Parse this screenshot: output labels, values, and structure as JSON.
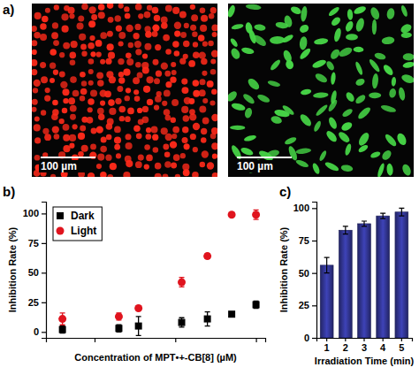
{
  "images": {
    "panel": "a)",
    "panels": [
      {
        "scale_bar": "100 µm",
        "color": "#ff2a1a"
      },
      {
        "scale_bar": "100 µm",
        "color": "#46d446"
      }
    ]
  },
  "chart_data": [
    {
      "panel": "b)",
      "type": "scatter",
      "x_label": "Concentration of MPT•+-CB[8] (µM)",
      "y_label": "Inhibition Rate (%)",
      "x": [
        0.4,
        2,
        3.5,
        12,
        25,
        50,
        100
      ],
      "series": [
        {
          "name": "Dark",
          "color": "#000000",
          "marker": "square",
          "values": [
            2,
            3,
            5,
            8,
            11,
            15,
            23
          ],
          "errors": [
            3,
            3,
            8,
            4,
            6,
            1,
            3
          ]
        },
        {
          "name": "Light",
          "color": "#e0141e",
          "marker": "circle",
          "values": [
            11,
            13,
            20,
            42,
            64,
            99,
            99
          ],
          "errors": [
            5,
            3,
            1,
            4,
            2,
            1,
            4
          ]
        }
      ],
      "xlim": [
        0.25,
        130
      ],
      "ylim": [
        -5,
        110
      ],
      "xticks": [
        1,
        10,
        100
      ],
      "yticks": [
        0,
        25,
        50,
        75,
        100
      ],
      "log": "x",
      "legend": "upper left",
      "tick_labels": "y"
    },
    {
      "panel": "c)",
      "type": "bar",
      "x_label": "Irradiation Time (min)",
      "y_label": "Inhibition Rate (%)",
      "categories": [
        "1",
        "2",
        "3",
        "4",
        "5"
      ],
      "values": [
        56,
        83,
        88,
        94,
        97
      ],
      "errors": [
        6,
        3,
        2,
        2,
        3
      ],
      "color": "#2a2d7c",
      "ylim": [
        0,
        105
      ],
      "yticks": [
        0,
        25,
        50,
        75,
        100
      ]
    }
  ]
}
